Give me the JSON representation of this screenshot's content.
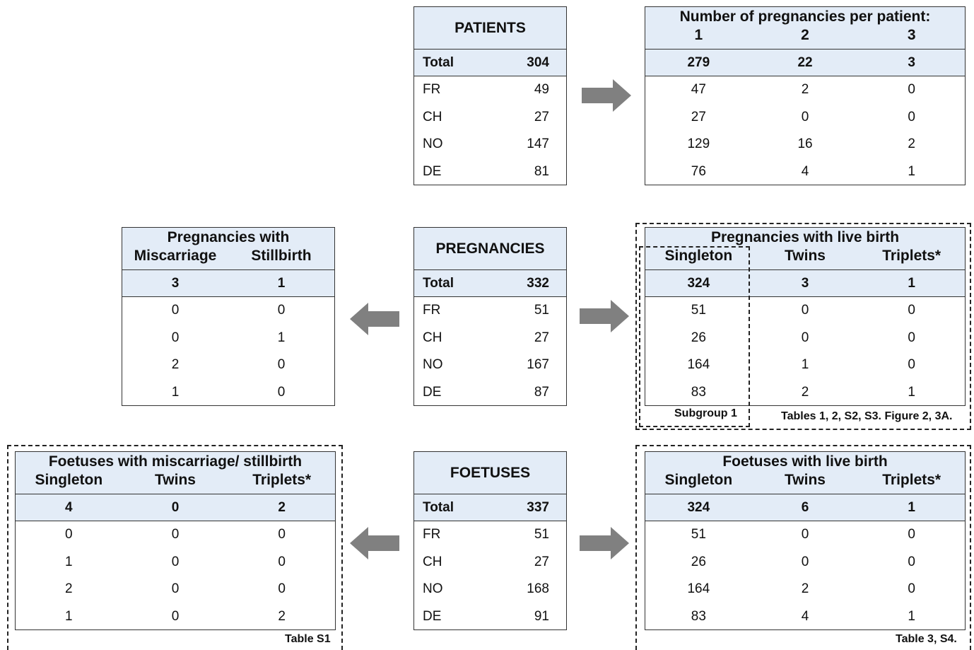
{
  "patients": {
    "title": "PATIENTS",
    "total_label": "Total",
    "total_value": "304",
    "rows": [
      [
        "FR",
        "49"
      ],
      [
        "CH",
        "27"
      ],
      [
        "NO",
        "147"
      ],
      [
        "DE",
        "81"
      ]
    ]
  },
  "preg_per_patient": {
    "title": "Number of pregnancies per patient:",
    "cols": [
      "1",
      "2",
      "3"
    ],
    "totals": [
      "279",
      "22",
      "3"
    ],
    "rows": [
      [
        "47",
        "2",
        "0"
      ],
      [
        "27",
        "0",
        "0"
      ],
      [
        "129",
        "16",
        "2"
      ],
      [
        "76",
        "4",
        "1"
      ]
    ]
  },
  "pregnancies": {
    "title": "PREGNANCIES",
    "total_label": "Total",
    "total_value": "332",
    "rows": [
      [
        "FR",
        "51"
      ],
      [
        "CH",
        "27"
      ],
      [
        "NO",
        "167"
      ],
      [
        "DE",
        "87"
      ]
    ]
  },
  "preg_loss": {
    "title": "Pregnancies with",
    "cols": [
      "Miscarriage",
      "Stillbirth"
    ],
    "totals": [
      "3",
      "1"
    ],
    "rows": [
      [
        "0",
        "0"
      ],
      [
        "0",
        "1"
      ],
      [
        "2",
        "0"
      ],
      [
        "1",
        "0"
      ]
    ]
  },
  "preg_live": {
    "title": "Pregnancies with live birth",
    "cols": [
      "Singleton",
      "Twins",
      "Triplets*"
    ],
    "totals": [
      "324",
      "3",
      "1"
    ],
    "rows": [
      [
        "51",
        "0",
        "0"
      ],
      [
        "26",
        "0",
        "0"
      ],
      [
        "164",
        "1",
        "0"
      ],
      [
        "83",
        "2",
        "1"
      ]
    ],
    "subgroup_note": "Subgroup 1",
    "ref_note": "Tables 1, 2, S2, S3. Figure 2, 3A."
  },
  "foetuses": {
    "title": "FOETUSES",
    "total_label": "Total",
    "total_value": "337",
    "rows": [
      [
        "FR",
        "51"
      ],
      [
        "CH",
        "27"
      ],
      [
        "NO",
        "168"
      ],
      [
        "DE",
        "91"
      ]
    ]
  },
  "foet_loss": {
    "title": "Foetuses with miscarriage/ stillbirth",
    "cols": [
      "Singleton",
      "Twins",
      "Triplets*"
    ],
    "totals": [
      "4",
      "0",
      "2"
    ],
    "rows": [
      [
        "0",
        "0",
        "0"
      ],
      [
        "1",
        "0",
        "0"
      ],
      [
        "2",
        "0",
        "0"
      ],
      [
        "1",
        "0",
        "2"
      ]
    ],
    "ref_note": "Table S1"
  },
  "foet_live": {
    "title": "Foetuses with live birth",
    "cols": [
      "Singleton",
      "Twins",
      "Triplets*"
    ],
    "totals": [
      "324",
      "6",
      "1"
    ],
    "rows": [
      [
        "51",
        "0",
        "0"
      ],
      [
        "26",
        "0",
        "0"
      ],
      [
        "164",
        "2",
        "0"
      ],
      [
        "83",
        "4",
        "1"
      ]
    ],
    "ref_note": "Table 3, S4."
  },
  "colors": {
    "header_fill": "#e3ecf7",
    "arrow": "#808080",
    "border": "#333333"
  }
}
